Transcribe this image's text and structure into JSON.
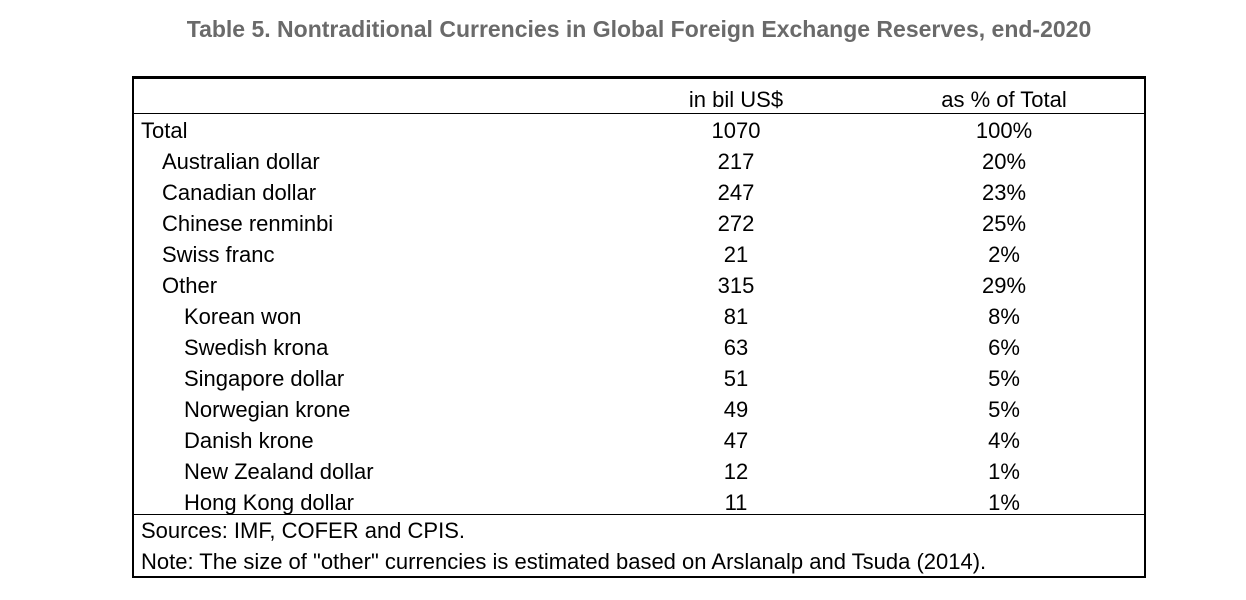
{
  "title": "Table 5. Nontraditional Currencies in Global  Foreign Exchange Reserves, end-2020",
  "columns": {
    "bil": "in bil US$",
    "pct": "as % of Total"
  },
  "rows": [
    {
      "label": "Total",
      "bil": "1070",
      "pct": "100%"
    },
    {
      "label": "Australian dollar",
      "bil": "217",
      "pct": "20%"
    },
    {
      "label": "Canadian dollar",
      "bil": "247",
      "pct": "23%"
    },
    {
      "label": "Chinese renminbi",
      "bil": "272",
      "pct": "25%"
    },
    {
      "label": "Swiss franc",
      "bil": "21",
      "pct": "2%"
    },
    {
      "label": "Other",
      "bil": "315",
      "pct": "29%"
    },
    {
      "label": "Korean won",
      "bil": "81",
      "pct": "8%"
    },
    {
      "label": "Swedish krona",
      "bil": "63",
      "pct": "6%"
    },
    {
      "label": "Singapore dollar",
      "bil": "51",
      "pct": "5%"
    },
    {
      "label": "Norwegian krone",
      "bil": "49",
      "pct": "5%"
    },
    {
      "label": "Danish krone",
      "bil": "47",
      "pct": "4%"
    },
    {
      "label": "New Zealand dollar",
      "bil": "12",
      "pct": "1%"
    },
    {
      "label": "Hong Kong dollar",
      "bil": "11",
      "pct": "1%"
    }
  ],
  "footer": {
    "sources": "Sources: IMF, COFER and CPIS.",
    "note": "Note: The size of \"other\" currencies is estimated based on Arslanalp and Tsuda (2014)."
  }
}
